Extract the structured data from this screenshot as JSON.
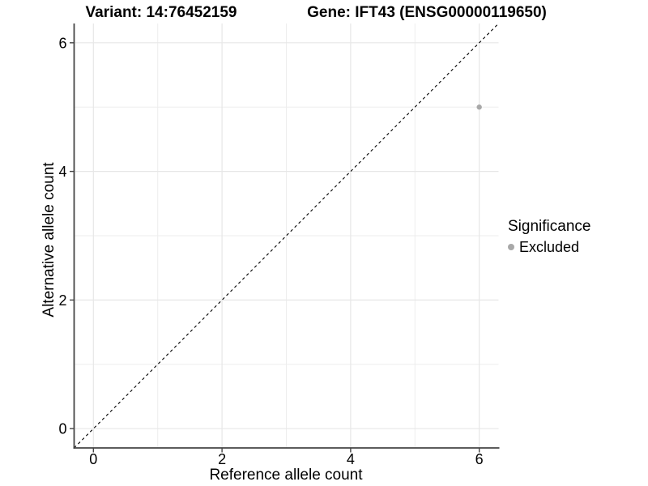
{
  "chart_data": {
    "type": "scatter",
    "titles": [
      "Variant: 14:76452159",
      "Gene: IFT43 (ENSG00000119650)"
    ],
    "xlabel": "Reference allele count",
    "ylabel": "Alternative allele count",
    "xlim": [
      -0.3,
      6.3
    ],
    "ylim": [
      -0.3,
      6.3
    ],
    "x_ticks": [
      0,
      2,
      4,
      6
    ],
    "y_ticks": [
      0,
      2,
      4,
      6
    ],
    "minor_gridlines": [
      1,
      3,
      5
    ],
    "grid": true,
    "reference_line": {
      "style": "dashed",
      "from": [
        -0.3,
        -0.3
      ],
      "to": [
        6.3,
        6.3
      ]
    },
    "series": [
      {
        "name": "Excluded",
        "points": [
          {
            "x": 6,
            "y": 5
          }
        ]
      }
    ],
    "legend": {
      "title": "Significance",
      "position": "right",
      "entries": [
        {
          "label": "Excluded",
          "color": "#a8a8a8"
        }
      ]
    },
    "colors": {
      "background": "#ffffff",
      "grid_major": "#e7e7e7",
      "grid_minor": "#ededed",
      "axis": "#454545",
      "point": "#a8a8a8",
      "reference_line": "#000000",
      "text": "#000000"
    }
  }
}
